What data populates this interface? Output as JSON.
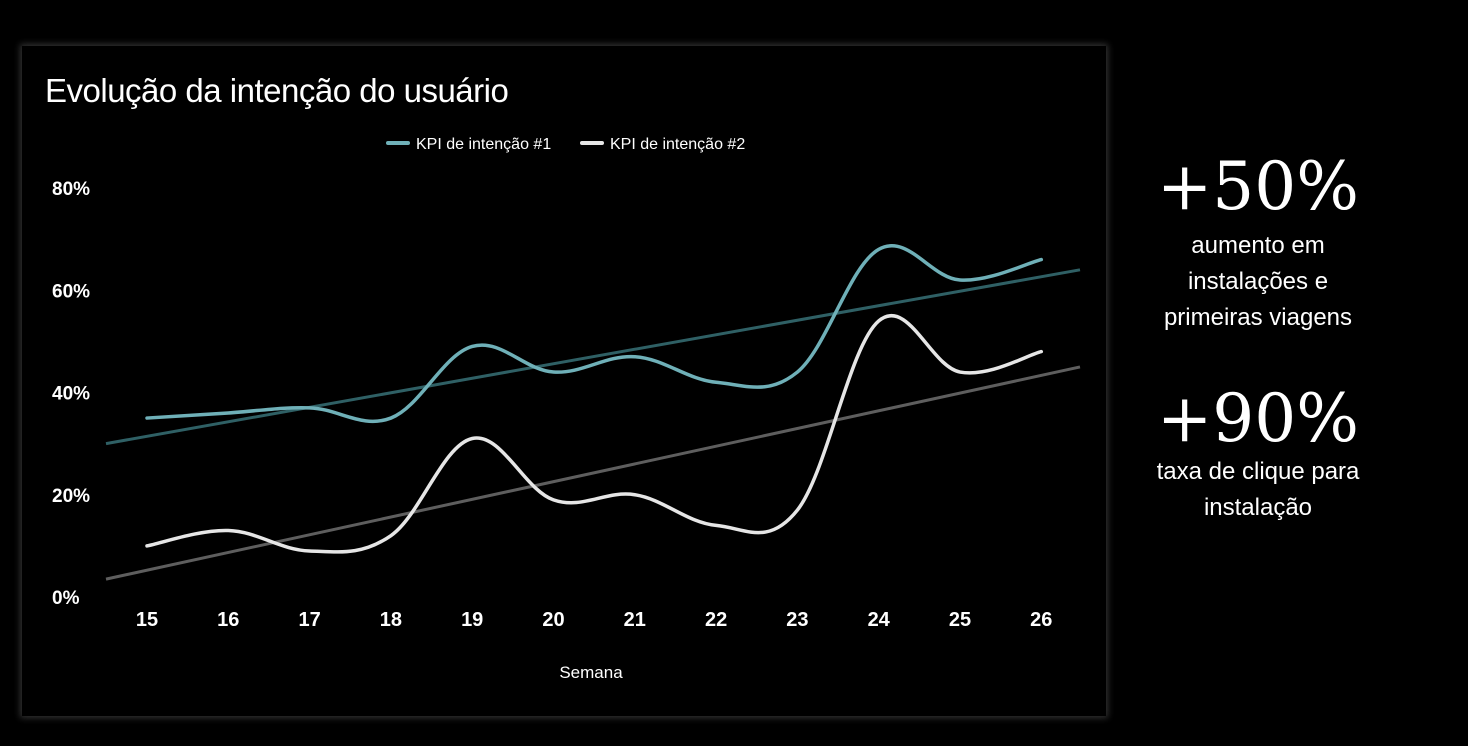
{
  "chart_data": {
    "type": "line",
    "title": "Evolução da intenção do usuário",
    "xlabel": "Semana",
    "ylabel": "",
    "categories": [
      "15",
      "16",
      "17",
      "18",
      "19",
      "20",
      "21",
      "22",
      "23",
      "24",
      "25",
      "26"
    ],
    "ylim": [
      0,
      80
    ],
    "yticks": [
      0,
      20,
      40,
      60,
      80
    ],
    "ytick_labels": [
      "0%",
      "20%",
      "40%",
      "60%",
      "80%"
    ],
    "grid": false,
    "legend_position": "top-center",
    "series": [
      {
        "name": "KPI de intenção #1",
        "color": "#6fb0b8",
        "values": [
          35,
          36,
          37,
          35,
          49,
          44,
          47,
          42,
          44,
          68,
          62,
          66
        ]
      },
      {
        "name": "KPI de intenção #2",
        "color": "#e6e6e6",
        "values": [
          10,
          13,
          9,
          12,
          31,
          19,
          20,
          14,
          17,
          54,
          44,
          48
        ]
      }
    ],
    "trendlines": [
      {
        "series": "KPI de intenção #1",
        "color": "#2f6065",
        "start": 30,
        "end": 64
      },
      {
        "series": "KPI de intenção #2",
        "color": "#5e5e5e",
        "start": 3.5,
        "end": 45
      }
    ]
  },
  "stats": [
    {
      "value": "+50%",
      "description_lines": [
        "aumento em",
        "instalações e",
        "primeiras viagens"
      ]
    },
    {
      "value": "+90%",
      "description_lines": [
        "taxa de clique para",
        "instalação"
      ]
    }
  ]
}
